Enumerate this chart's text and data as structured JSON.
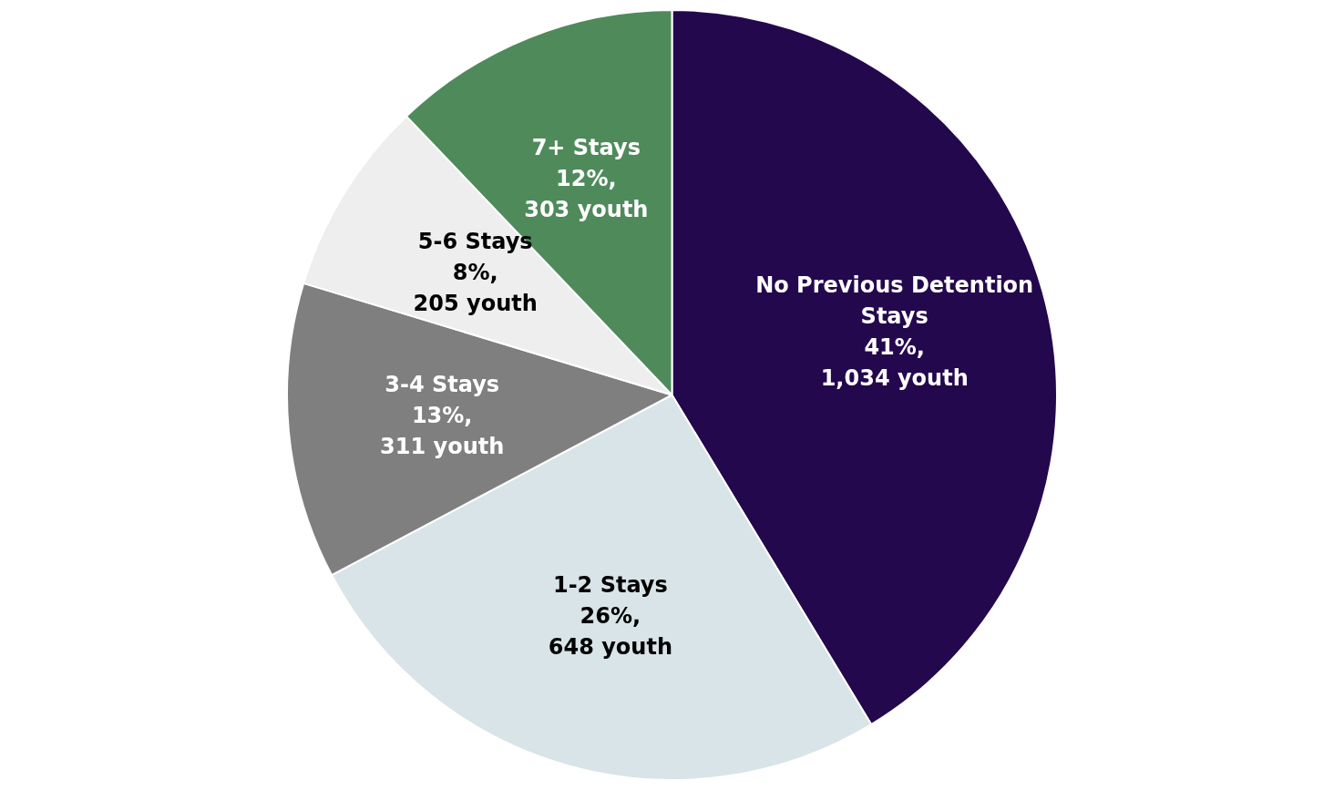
{
  "chart_data": {
    "type": "pie",
    "categories": [
      "No Previous Detention Stays",
      "1-2 Stays",
      "3-4 Stays",
      "5-6 Stays",
      "7+ Stays"
    ],
    "values": [
      1034,
      648,
      311,
      205,
      303
    ],
    "value_labels": [
      "41%,\n1,034 youth",
      "26%,\n648 youth",
      "13%,\n311 youth",
      "8%,\n205 youth",
      "12%,\n303 youth"
    ],
    "colors": [
      "#24084d",
      "#d8e4e8",
      "#7f7f7f",
      "#eeeeee",
      "#4f8a5b"
    ],
    "legend": false
  }
}
